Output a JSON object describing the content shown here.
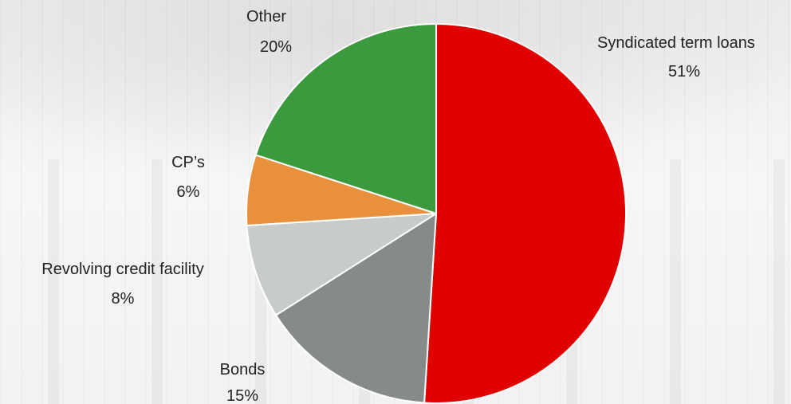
{
  "chart_data": {
    "type": "pie",
    "start_angle_deg": 0,
    "direction": "clockwise",
    "slices": [
      {
        "name": "Syndicated term loans",
        "value": 51,
        "label": "51%",
        "color": "#e00000"
      },
      {
        "name": "Bonds",
        "value": 15,
        "label": "15%",
        "color": "#858b8a"
      },
      {
        "name": "Revolving credit facility",
        "value": 8,
        "label": "8%",
        "color": "#c7cccb"
      },
      {
        "name": "CP’s",
        "value": 6,
        "label": "6%",
        "color": "#e8903b"
      },
      {
        "name": "Other",
        "value": 20,
        "label": "20%",
        "color": "#3a9a3d"
      }
    ],
    "slice_border_color": "#ffffff"
  }
}
